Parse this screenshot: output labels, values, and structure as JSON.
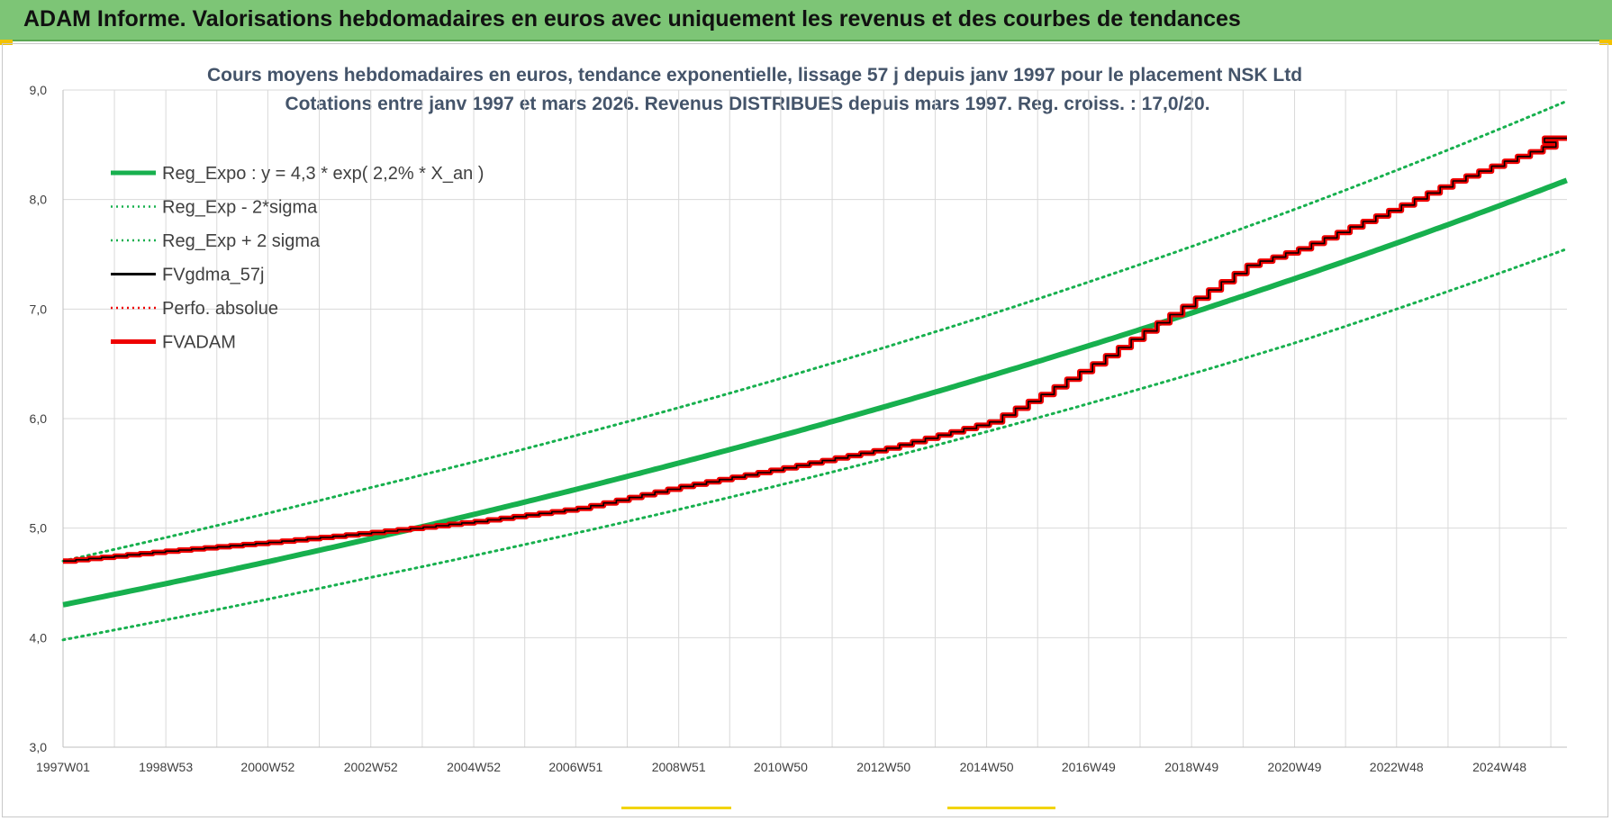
{
  "banner": {
    "title": "ADAM Informe. Valorisations hebdomadaires en euros avec uniquement les revenus et des courbes de tendances"
  },
  "colors": {
    "banner_bg": "#7dc576",
    "title_text": "#44546a",
    "green": "#17b04e",
    "red": "#ee0000",
    "black": "#000000",
    "grid": "#d9d9d9"
  },
  "chart_data": {
    "type": "line",
    "title": "Cours moyens hebdomadaires en euros, tendance exponentielle, lissage 57 j depuis janv 1997  pour le placement NSK Ltd",
    "subtitle": "Cotations entre janv 1997 et mars 2026. Revenus DISTRIBUES depuis mars 1997. Reg. croiss. : 17,0/20.",
    "xlabel": "",
    "ylabel": "",
    "ylim": [
      3.0,
      9.0
    ],
    "yticks": [
      "3,0",
      "4,0",
      "5,0",
      "6,0",
      "7,0",
      "8,0",
      "9,0"
    ],
    "xlim": [
      "1997W01",
      "2026W12"
    ],
    "x_tick_labels": [
      "1997W01",
      "1998W53",
      "2000W52",
      "2002W52",
      "2004W52",
      "2006W51",
      "2008W51",
      "2010W50",
      "2012W50",
      "2014W50",
      "2016W49",
      "2018W49",
      "2020W49",
      "2022W48",
      "2024W48"
    ],
    "grid": true,
    "legend_position": "top-left",
    "series": [
      {
        "name": "Reg_Expo : y = 4,3 * exp( 2,2% *  X_an )",
        "style": "solid-thick",
        "color": "#17b04e",
        "model": {
          "a": 4.3,
          "rate": 0.022
        },
        "x": [
          "1997W01",
          "2002W52",
          "2008W51",
          "2014W50",
          "2020W49",
          "2026W12"
        ],
        "values": [
          4.33,
          4.95,
          5.62,
          6.4,
          7.28,
          8.2
        ]
      },
      {
        "name": "Reg_Exp - 2*sigma",
        "style": "dotted",
        "color": "#17b04e",
        "x": [
          "1997W01",
          "2002W52",
          "2008W51",
          "2014W50",
          "2020W49",
          "2026W12"
        ],
        "values": [
          3.98,
          4.55,
          5.17,
          5.88,
          6.69,
          7.55
        ]
      },
      {
        "name": "Reg_Exp + 2 sigma",
        "style": "dotted",
        "color": "#17b04e",
        "x": [
          "1997W01",
          "2002W52",
          "2008W51",
          "2014W50",
          "2020W49",
          "2026W12"
        ],
        "values": [
          4.7,
          5.37,
          6.1,
          6.94,
          7.91,
          8.9
        ]
      },
      {
        "name": "FVgdma_57j",
        "style": "solid-thin",
        "color": "#000000",
        "x": [
          "1997W01",
          "1999W01",
          "2001W01",
          "2003W01",
          "2005W01",
          "2007W01",
          "2009W01",
          "2011W01",
          "2013W01",
          "2015W01",
          "2016W01",
          "2017W01",
          "2018W01",
          "2019W01",
          "2020W01",
          "2021W01",
          "2022W01",
          "2023W01",
          "2024W01",
          "2025W01",
          "2026W12"
        ],
        "values": [
          4.7,
          4.79,
          4.87,
          4.96,
          5.06,
          5.18,
          5.38,
          5.55,
          5.73,
          5.97,
          6.22,
          6.5,
          6.8,
          7.1,
          7.4,
          7.55,
          7.75,
          7.95,
          8.17,
          8.35,
          8.56
        ]
      },
      {
        "name": "Perfo. absolue",
        "style": "dotted",
        "color": "#ee0000",
        "x": [],
        "values": []
      },
      {
        "name": "FVADAM",
        "style": "solid-thick",
        "color": "#ee0000",
        "x": [
          "1997W01",
          "1999W01",
          "2001W01",
          "2003W01",
          "2005W01",
          "2007W01",
          "2009W01",
          "2011W01",
          "2013W01",
          "2015W01",
          "2016W01",
          "2017W01",
          "2018W01",
          "2019W01",
          "2020W01",
          "2021W01",
          "2022W01",
          "2023W01",
          "2024W01",
          "2025W01",
          "2026W12"
        ],
        "values": [
          4.7,
          4.79,
          4.87,
          4.96,
          5.06,
          5.18,
          5.38,
          5.55,
          5.73,
          5.97,
          6.22,
          6.5,
          6.8,
          7.1,
          7.4,
          7.55,
          7.75,
          7.95,
          8.17,
          8.35,
          8.56
        ]
      }
    ]
  }
}
